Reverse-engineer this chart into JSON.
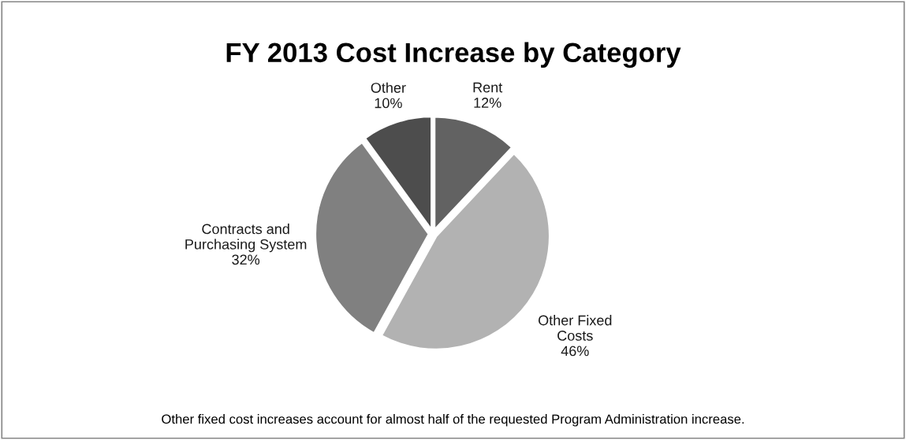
{
  "chart_data": {
    "type": "pie",
    "title": "FY 2013 Cost Increase by Category",
    "categories": [
      "Rent",
      "Other Fixed\nCosts",
      "Contracts and\nPurchasing System",
      "Other"
    ],
    "values": [
      12,
      46,
      32,
      10
    ],
    "value_labels": [
      "12%",
      "46%",
      "32%",
      "10%"
    ],
    "colors": [
      "#626262",
      "#b2b2b2",
      "#808080",
      "#4d4d4d"
    ],
    "annotations": [
      "Other fixed cost increases account for almost half of the requested Program Administration increase."
    ]
  }
}
